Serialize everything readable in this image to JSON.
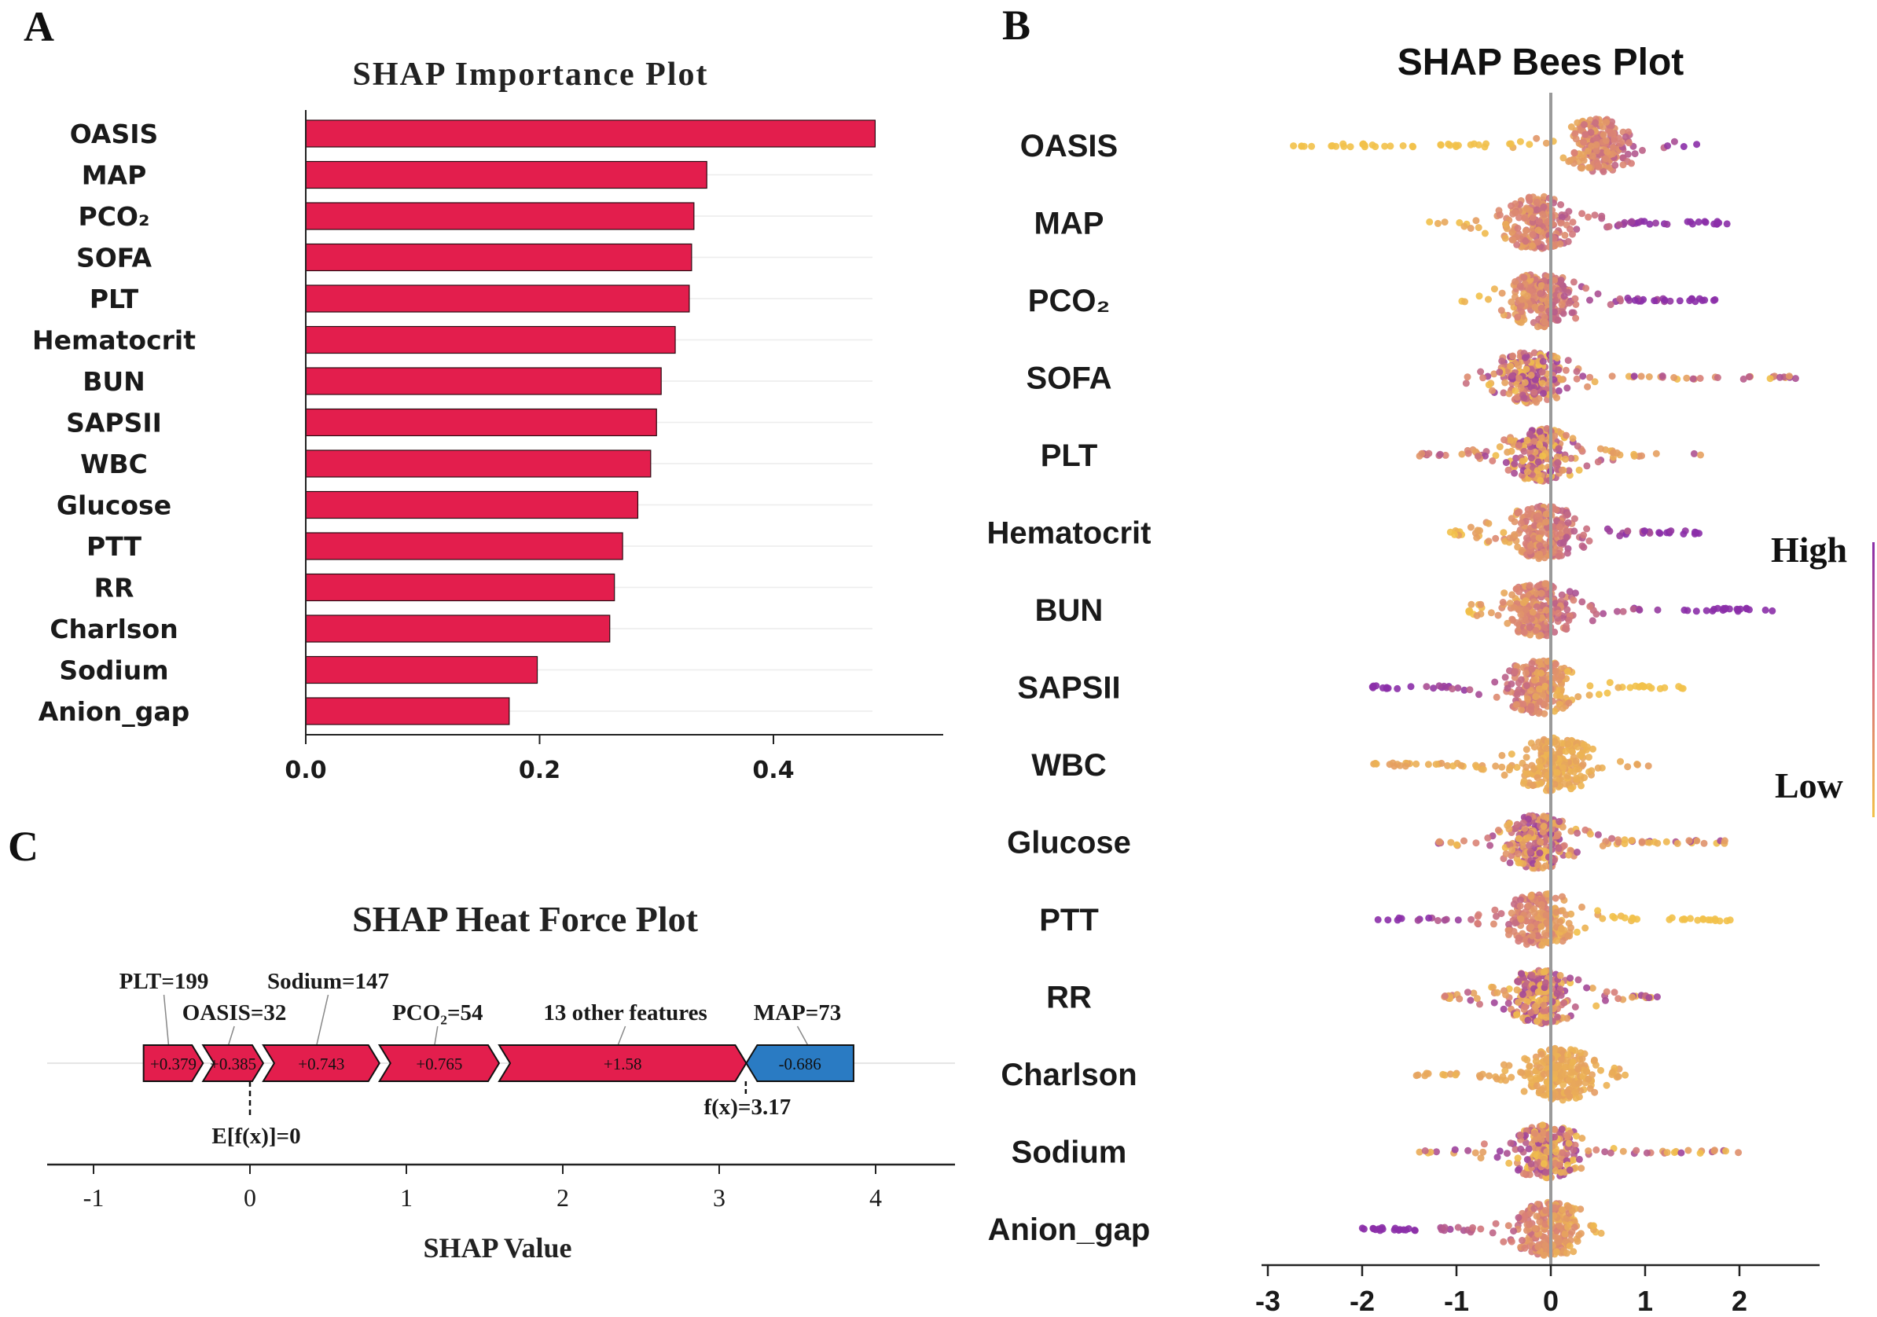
{
  "colors": {
    "bar": "#E31E4D",
    "bar_stroke": "#2a0a12",
    "force_pos": "#E31E4D",
    "force_neg": "#2A7BC3",
    "high": "#8B2FA8",
    "low": "#F2C14A"
  },
  "panels": {
    "a_letter": "A",
    "b_letter": "B",
    "c_letter": "C"
  },
  "chart_data": [
    {
      "id": "A",
      "type": "bar",
      "orientation": "horizontal",
      "title": "SHAP Importance Plot",
      "categories": [
        "OASIS",
        "MAP",
        "PCO₂",
        "SOFA",
        "PLT",
        "Hematocrit",
        "BUN",
        "SAPSII",
        "WBC",
        "Glucose",
        "PTT",
        "RR",
        "Charlson",
        "Sodium",
        "Anion_gap"
      ],
      "values": [
        0.487,
        0.343,
        0.332,
        0.33,
        0.328,
        0.316,
        0.304,
        0.3,
        0.295,
        0.284,
        0.271,
        0.264,
        0.26,
        0.198,
        0.174
      ],
      "xlim": [
        0,
        0.545
      ],
      "xticks": [
        "0.0",
        "0.2",
        "0.4"
      ],
      "xtick_values": [
        0,
        0.2,
        0.4
      ],
      "xlabel": "",
      "ylabel": ""
    },
    {
      "id": "B",
      "type": "scatter",
      "subtype": "beeswarm",
      "title": "SHAP Bees Plot",
      "features": [
        "OASIS",
        "MAP",
        "PCO₂",
        "SOFA",
        "PLT",
        "Hematocrit",
        "BUN",
        "SAPSII",
        "WBC",
        "Glucose",
        "PTT",
        "RR",
        "Charlson",
        "Sodium",
        "Anion_gap"
      ],
      "ranges": [
        [
          -2.8,
          1.55
        ],
        [
          -1.3,
          1.9
        ],
        [
          -0.95,
          1.75
        ],
        [
          -0.9,
          2.6
        ],
        [
          -1.4,
          1.6
        ],
        [
          -1.15,
          1.6
        ],
        [
          -1.15,
          2.35
        ],
        [
          -1.9,
          1.5
        ],
        [
          -1.9,
          1.05
        ],
        [
          -1.25,
          1.85
        ],
        [
          -1.9,
          1.95
        ],
        [
          -1.15,
          1.15
        ],
        [
          -1.45,
          0.8
        ],
        [
          -1.45,
          2.1
        ],
        [
          -2.0,
          0.55
        ]
      ],
      "centers": [
        0.5,
        -0.15,
        -0.1,
        -0.2,
        -0.1,
        -0.1,
        -0.1,
        -0.1,
        0.05,
        -0.15,
        -0.1,
        -0.1,
        0.1,
        -0.05,
        0.0
      ],
      "high_side": [
        "right",
        "right",
        "right",
        "mixed",
        "mixed",
        "right",
        "right",
        "left",
        "none",
        "mixed",
        "left",
        "mixed",
        "none",
        "mixed",
        "left"
      ],
      "xlim": [
        -3.0,
        2.8
      ],
      "xticks": [
        "-3",
        "-2",
        "-1",
        "0",
        "1",
        "2"
      ],
      "xtick_values": [
        -3,
        -2,
        -1,
        0,
        1,
        2
      ],
      "legend": {
        "high": "High",
        "low": "Low"
      }
    },
    {
      "id": "C",
      "type": "force",
      "title": "SHAP Heat Force Plot",
      "xlabel": "SHAP Value",
      "xlim": [
        -1.25,
        4.45
      ],
      "xticks": [
        "-1",
        "0",
        "1",
        "2",
        "3",
        "4"
      ],
      "xtick_values": [
        -1,
        0,
        1,
        2,
        3,
        4
      ],
      "base_value": 0,
      "base_label": "E[f(x)]=0",
      "output_value": 3.17,
      "output_label": "f(x)=3.17",
      "segments": [
        {
          "feature": "PLT=199",
          "value": 0.379,
          "text": "+0.379",
          "start": -0.68,
          "end": -0.3,
          "label_at": -0.55,
          "label_row": 1
        },
        {
          "feature": "OASIS=32",
          "value": 0.385,
          "text": "+0.385",
          "start": -0.3,
          "end": 0.085,
          "label_at": -0.1,
          "label_row": 2
        },
        {
          "feature": "Sodium=147",
          "value": 0.743,
          "text": "+0.743",
          "start": 0.085,
          "end": 0.828,
          "label_at": 0.5,
          "label_row": 1
        },
        {
          "feature": "PCO₂=54",
          "value": 0.765,
          "text": "+0.765",
          "start": 0.828,
          "end": 1.593,
          "label_at": 1.2,
          "label_row": 2
        },
        {
          "feature": "13 other features",
          "value": 1.58,
          "text": "+1.58",
          "start": 1.593,
          "end": 3.173,
          "label_at": 2.4,
          "label_row": 2
        },
        {
          "feature": "MAP=73",
          "value": -0.686,
          "text": "-0.686",
          "start": 3.173,
          "end": 3.859,
          "label_at": 3.5,
          "label_row": 2
        }
      ]
    }
  ]
}
